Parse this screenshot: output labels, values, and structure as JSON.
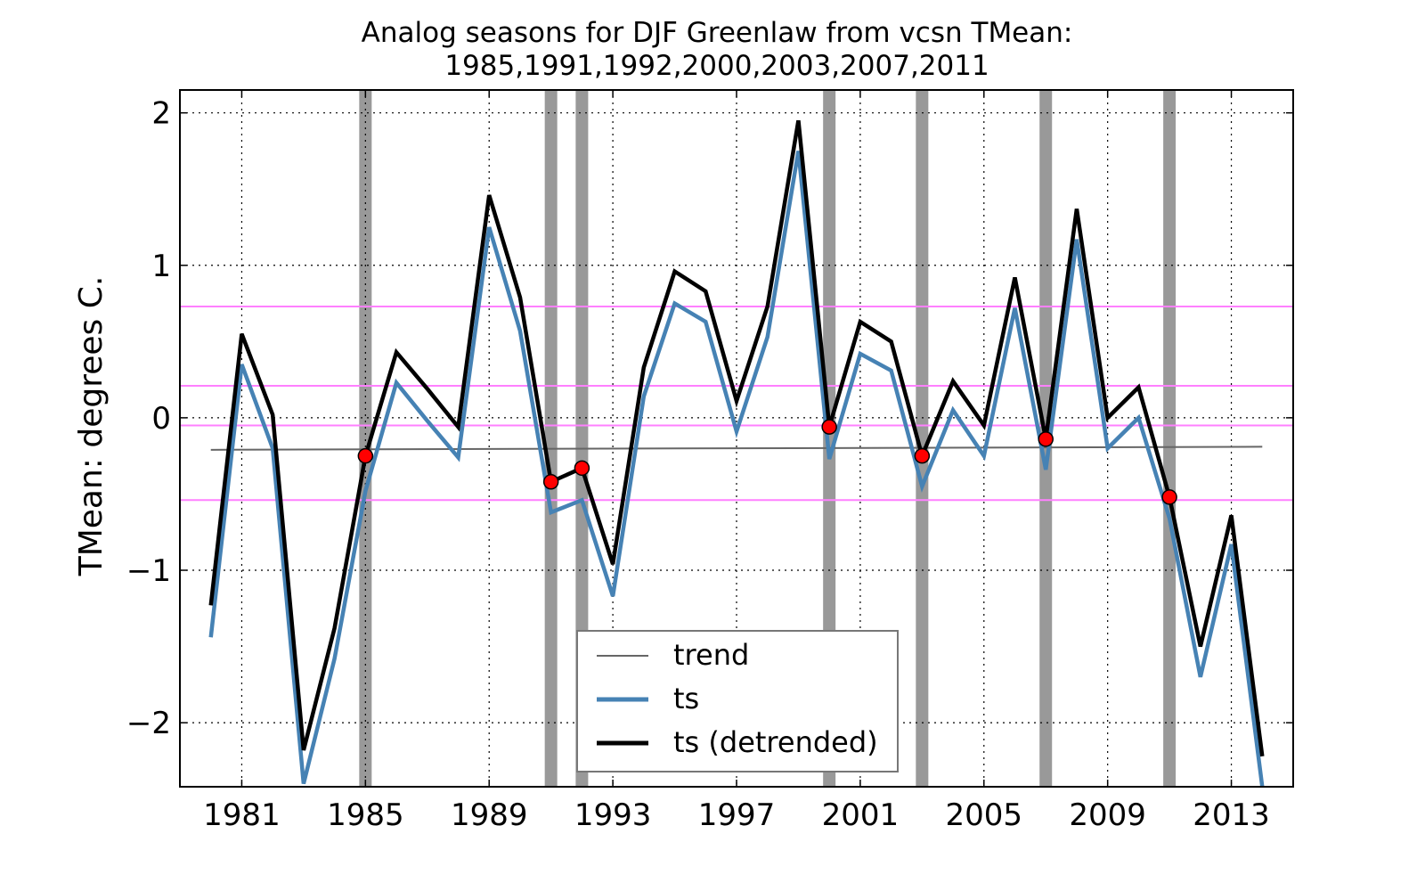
{
  "chart_data": {
    "type": "line",
    "title": "Analog seasons for DJF Greenlaw from vcsn TMean:",
    "subtitle": "1985,1991,1992,2000,2003,2007,2011",
    "xlabel": "",
    "ylabel": "TMean: degrees C.",
    "xlim": [
      1979.0,
      2015.0
    ],
    "ylim": [
      -2.42,
      2.15
    ],
    "xticks": [
      "1981",
      "1985",
      "1989",
      "1993",
      "1997",
      "2001",
      "2005",
      "2009",
      "2013"
    ],
    "yticks": [
      "2",
      "1",
      "0",
      "−1",
      "−2"
    ],
    "grid": true,
    "legend_position": "lower-center",
    "x": [
      1980,
      1981,
      1982,
      1983,
      1984,
      1985,
      1986,
      1987,
      1988,
      1989,
      1990,
      1991,
      1992,
      1993,
      1994,
      1995,
      1996,
      1997,
      1998,
      1999,
      2000,
      2001,
      2002,
      2003,
      2004,
      2005,
      2006,
      2007,
      2008,
      2009,
      2010,
      2011,
      2012,
      2013,
      2014
    ],
    "series": [
      {
        "name": "trend",
        "color": "#666666",
        "x": [
          1980,
          2014
        ],
        "values": [
          -0.21,
          -0.19
        ]
      },
      {
        "name": "ts",
        "color": "#4682b4",
        "values": [
          -1.44,
          0.35,
          -0.2,
          -2.4,
          -1.58,
          -0.48,
          0.23,
          -0.02,
          -0.26,
          1.25,
          0.57,
          -0.62,
          -0.54,
          -1.17,
          0.14,
          0.75,
          0.63,
          -0.09,
          0.53,
          1.75,
          -0.27,
          0.42,
          0.31,
          -0.45,
          0.05,
          -0.25,
          0.72,
          -0.34,
          1.17,
          -0.2,
          0.0,
          -0.66,
          -1.7,
          -0.83,
          -2.42
        ]
      },
      {
        "name": "ts (detrended)",
        "color": "#000000",
        "values": [
          -1.23,
          0.55,
          0.02,
          -2.18,
          -1.38,
          -0.25,
          0.43,
          0.19,
          -0.06,
          1.46,
          0.79,
          -0.42,
          -0.33,
          -0.96,
          0.33,
          0.96,
          0.83,
          0.11,
          0.73,
          1.95,
          -0.06,
          0.63,
          0.5,
          -0.25,
          0.24,
          -0.05,
          0.92,
          -0.14,
          1.37,
          0.0,
          0.2,
          -0.52,
          -1.5,
          -0.64,
          -2.22
        ]
      }
    ],
    "analog_years": [
      1985,
      1991,
      1992,
      2000,
      2003,
      2007,
      2011
    ],
    "analog_values": [
      -0.25,
      -0.42,
      -0.33,
      -0.06,
      -0.25,
      -0.14,
      -0.52
    ],
    "analog_bar_color": "#999999",
    "marker_color": "#ff0000",
    "reference_lines": [
      0.73,
      0.21,
      -0.05,
      -0.54
    ],
    "reference_line_color": "#ff80ff"
  }
}
